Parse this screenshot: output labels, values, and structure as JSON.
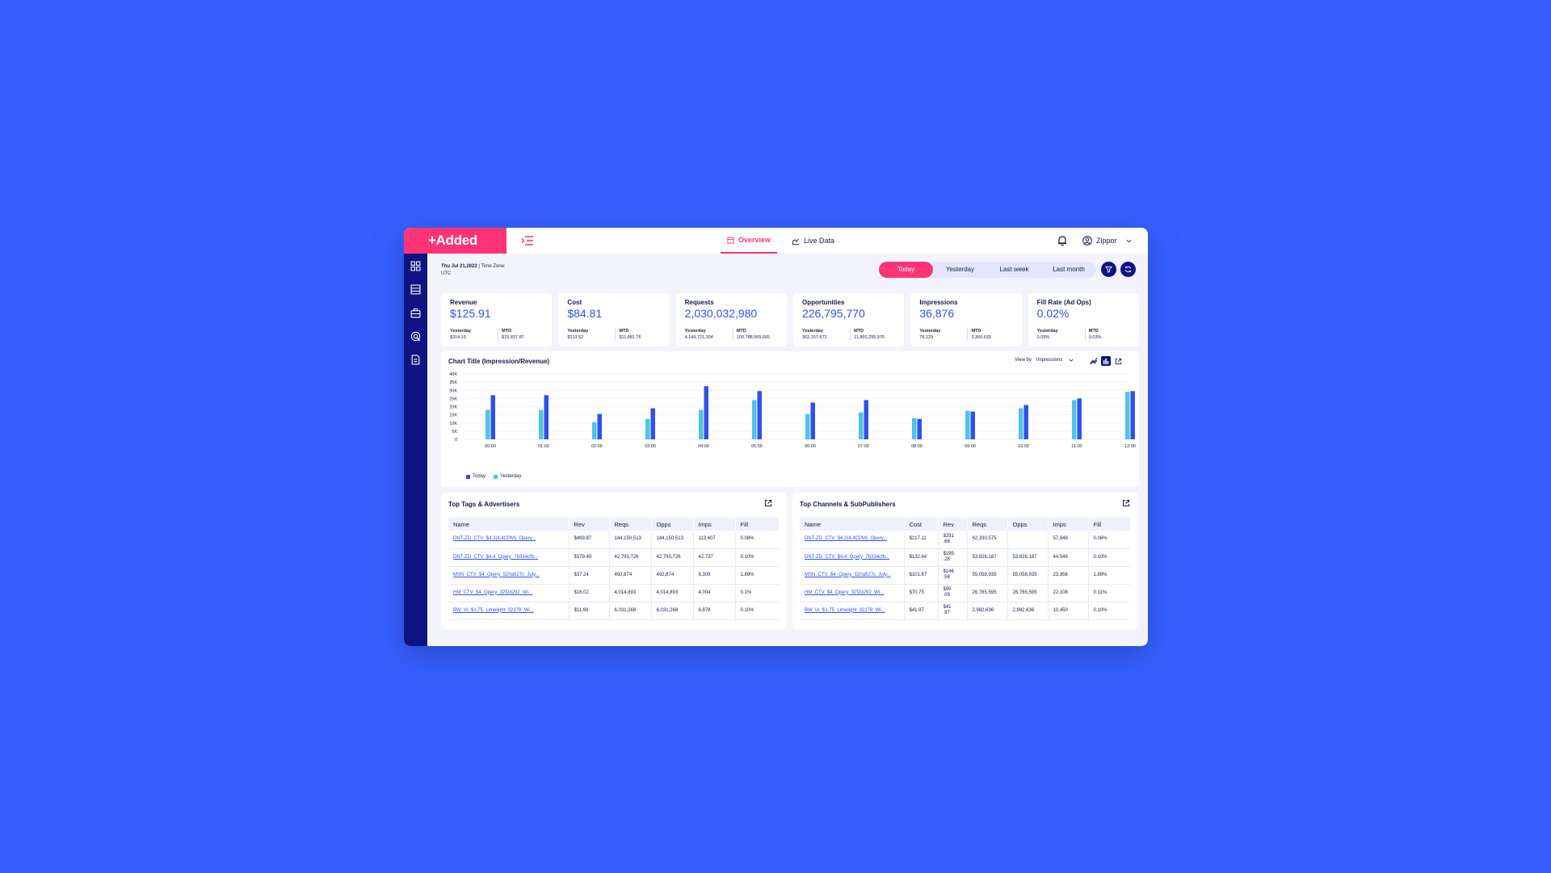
{
  "brand": {
    "logo": "+Added",
    "accent": "#ff3476",
    "nav_color": "#0d1380",
    "primary": "#2f51e8"
  },
  "header": {
    "tabs": [
      {
        "label": "Overview",
        "active": true
      },
      {
        "label": "Live Data",
        "active": false
      }
    ],
    "user_name": "Zippor"
  },
  "sidebar": {
    "icons": [
      "dashboard-icon",
      "table-icon",
      "briefcase-icon",
      "target-icon",
      "document-icon"
    ]
  },
  "datebar": {
    "date": "Thu Jul 21,2022",
    "tz": " | Time Zone:",
    "tz_value": "UTC"
  },
  "range": {
    "options": [
      "Today",
      "Yesterday",
      "Last week",
      "Last month"
    ],
    "selected": "Today"
  },
  "kpis": [
    {
      "label": "Revenue",
      "value": "$125.91",
      "y_label": "Yesterday",
      "y_value": "$314.15",
      "m_label": "MTD",
      "m_value": "$15,837.87"
    },
    {
      "label": "Cost",
      "value": "$84.81",
      "y_label": "Yesterday",
      "y_value": "$213.52",
      "m_label": "MTD",
      "m_value": "$11,881.76"
    },
    {
      "label": "Requests",
      "value": "2,030,032,980",
      "y_label": "Yesterday",
      "y_value": "4,149,721,304",
      "m_label": "MTD",
      "m_value": "100,788,565,665"
    },
    {
      "label": "Opportunities",
      "value": "226,795,770",
      "y_label": "Yesterday",
      "y_value": "302,157,672",
      "m_label": "MTD",
      "m_value": "11,860,295,976"
    },
    {
      "label": "Impressions",
      "value": "36,876",
      "y_label": "Yesterday",
      "y_value": "76,129",
      "m_label": "MTD",
      "m_value": "3,360,633"
    },
    {
      "label": "Fill Rate (Ad Ops)",
      "value": "0.02%",
      "y_label": "Yesterday",
      "y_value": "0.03%",
      "m_label": "MTD",
      "m_value": "0.03%"
    }
  ],
  "chart": {
    "title": "Chart Title (Impression/Revenue)",
    "view_by_label": "View by",
    "view_by_value": "Impressions"
  },
  "chart_data": {
    "type": "bar",
    "categories": [
      "00:00",
      "01:00",
      "02:00",
      "03:00",
      "04:00",
      "05:00",
      "06:00",
      "07:00",
      "08:00",
      "09:00",
      "10:00",
      "11:00",
      "12:00"
    ],
    "series": [
      {
        "name": "Today",
        "color": "#2f51e8",
        "values": [
          27000,
          27000,
          15500,
          19000,
          32500,
          29500,
          22500,
          24000,
          12500,
          17000,
          21000,
          25000,
          29500
        ]
      },
      {
        "name": "Yesterday",
        "color": "#4fc3e8",
        "values": [
          18000,
          18000,
          10500,
          12500,
          18000,
          24000,
          15500,
          16500,
          13000,
          17500,
          19000,
          24000,
          29000
        ]
      }
    ],
    "yticks": [
      "40K",
      "35K",
      "30K",
      "25K",
      "20K",
      "15K",
      "10K",
      "5K",
      "0"
    ],
    "ylim": [
      0,
      40000
    ],
    "legend": "bottom-left",
    "grid": true
  },
  "tables": {
    "tags": {
      "title": "Top Tags & Advertisers",
      "columns": [
        "Name",
        "Rev",
        "Reqs",
        "Opps",
        "Imps",
        "Fill"
      ],
      "rows": [
        [
          "DNT-ZD_CTV_$4.2(4.4CPM)_Opery...",
          "$499.87",
          "144,150,513",
          "144,150,513",
          "113,607",
          "0.08%"
        ],
        [
          "DNT-ZD_CTV_$4.4_Opery_7b334cfb...",
          "$179.49",
          "42,793,726",
          "42,793,726",
          "42,737",
          "0.10%"
        ],
        [
          "MSN_CTV_$4_Opery_520a527c_July...",
          "$37.24",
          "492,874",
          "492,874",
          "9,309",
          "1.89%"
        ],
        [
          "HM_CTV_$4_Opery_32f2d292_Wi...",
          "$16.02",
          "4,014,893",
          "4,014,893",
          "4,004",
          "0.1%"
        ],
        [
          "BW_IA_$1.75_Limelight_32278_Wi...",
          "$11.69",
          "6,031,268",
          "6,031,268",
          "6,878",
          "0.10%"
        ]
      ]
    },
    "channels": {
      "title": "Top Channels & SubPublishers",
      "columns": [
        "Name",
        "Cost",
        "Rev",
        "Reqs",
        "Opps",
        "Imps",
        "Fill"
      ],
      "rows": [
        [
          "DNT-ZD_CTV_$4.2(4.4CPM)_Opery...",
          "$217.11",
          "$291\n.68",
          "62,330,575",
          "",
          "57,848",
          "0.06%"
        ],
        [
          "DNT-ZD_CTV_$4.4_Opery_7b334cfb...",
          "$132.64",
          "$195\n.28",
          "53,826,187",
          "53,826,187",
          "44,546",
          "0.10%"
        ],
        [
          "MSN_CTV_$4_Opery_520a527c_July...",
          "$101.87",
          "$146\n.58",
          "55,058,935",
          "55,058,935",
          "23,956",
          "1.89%"
        ],
        [
          "HM_CTV_$4_Opery_32f2d292_Wi...",
          "$70.75",
          "$95\n.09",
          "26,765,595",
          "26,765,595",
          "22,108",
          "0.11%"
        ],
        [
          "BW_IA_$1.75_Limelight_32278_Wi...",
          "$41.97",
          "$41\n.97",
          "2,982,636",
          "2,982,636",
          "10,450",
          "0.10%"
        ]
      ]
    }
  }
}
